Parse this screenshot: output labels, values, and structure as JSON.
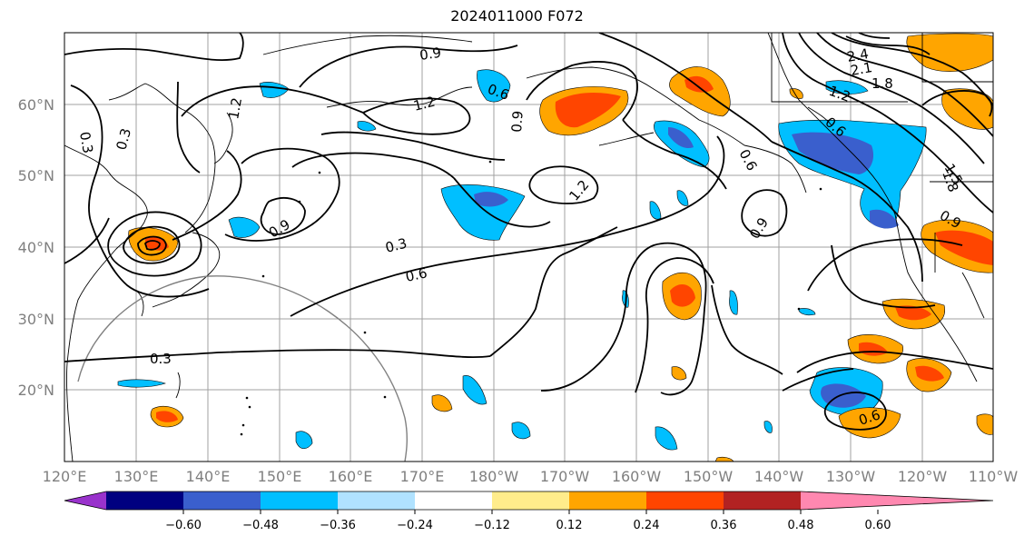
{
  "title": "2024011000 F072",
  "map": {
    "lat_ticks": [
      "20°N",
      "30°N",
      "40°N",
      "50°N",
      "60°N"
    ],
    "lon_ticks": [
      "120°E",
      "130°E",
      "140°E",
      "150°E",
      "160°E",
      "170°E",
      "180°W",
      "170°W",
      "160°W",
      "150°W",
      "140°W",
      "130°W",
      "120°W",
      "110°W"
    ],
    "contour_labels": [
      "0.3",
      "0.3",
      "0.3",
      "0.3",
      "0.6",
      "0.6",
      "0.6",
      "0.6",
      "0.6",
      "0.9",
      "0.9",
      "0.9",
      "0.9",
      "0.9",
      "1.2",
      "1.2",
      "1.2",
      "1.2",
      "1.5",
      "1.8",
      "1.8",
      "2.1",
      "2.4"
    ]
  },
  "colorbar": {
    "ticks": [
      "−0.60",
      "−0.48",
      "−0.36",
      "−0.24",
      "−0.12",
      "0.12",
      "0.24",
      "0.36",
      "0.48",
      "0.60"
    ],
    "colors": [
      "#9932cc",
      "#000080",
      "#3a5fcd",
      "#00bfff",
      "#b0e2ff",
      "#ffffff",
      "#ffec8b",
      "#ffa500",
      "#ff4500",
      "#b22222",
      "#ff88b0"
    ]
  }
}
